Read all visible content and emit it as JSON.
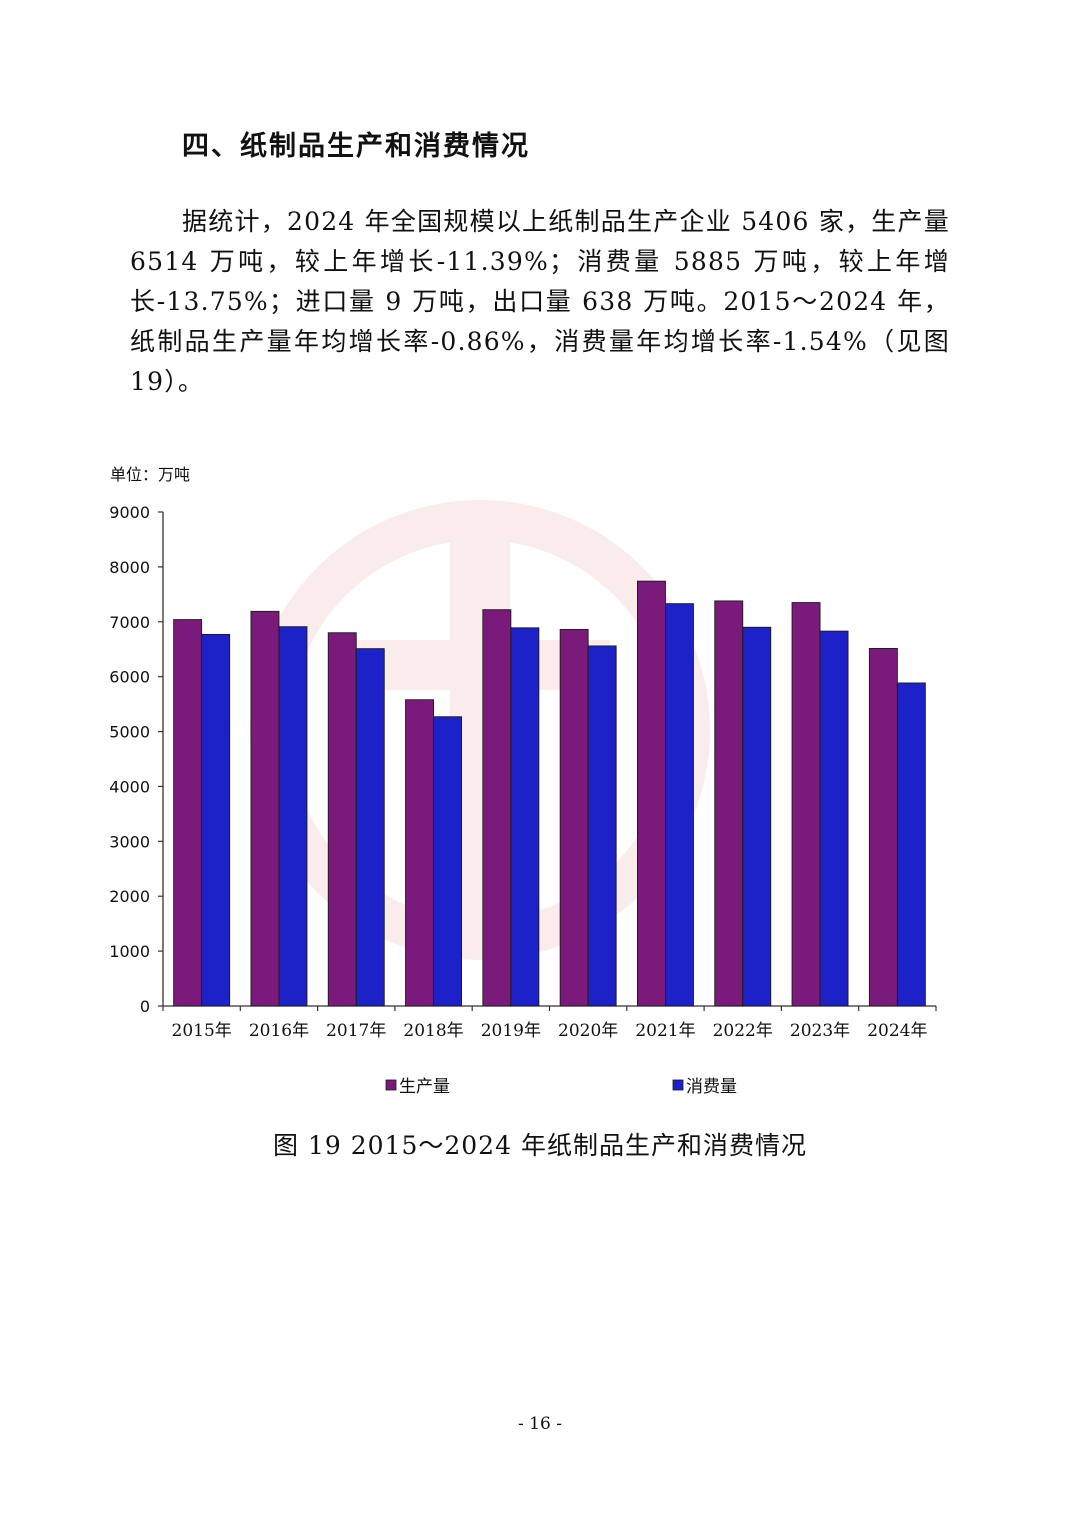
{
  "section_heading": "四、纸制品生产和消费情况",
  "paragraph": "据统计，2024 年全国规模以上纸制品生产企业 5406 家，生产量 6514 万吨，较上年增长-11.39%；消费量 5885 万吨，较上年增长-13.75%；进口量 9 万吨，出口量 638 万吨。2015～2024 年，纸制品生产量年均增长率-0.86%，消费量年均增长率-1.54%（见图 19）。",
  "caption": "图 19 2015～2024 年纸制品生产和消费情况",
  "page_number": "- 16 -",
  "chart_data": {
    "type": "bar",
    "unit_label": "单位：万吨",
    "categories": [
      "2015年",
      "2016年",
      "2017年",
      "2018年",
      "2019年",
      "2020年",
      "2021年",
      "2022年",
      "2023年",
      "2024年"
    ],
    "series": [
      {
        "name": "生产量",
        "color": "#7a1a7a",
        "values": [
          7040,
          7190,
          6800,
          5580,
          7220,
          6860,
          7740,
          7380,
          7350,
          6514
        ]
      },
      {
        "name": "消费量",
        "color": "#1c22c8",
        "values": [
          6770,
          6910,
          6510,
          5270,
          6890,
          6560,
          7330,
          6900,
          6830,
          5885
        ]
      }
    ],
    "ylim": [
      0,
      9000
    ],
    "yticks": [
      0,
      1000,
      2000,
      3000,
      4000,
      5000,
      6000,
      7000,
      8000,
      9000
    ],
    "legend_position": "bottom",
    "grid": false
  }
}
